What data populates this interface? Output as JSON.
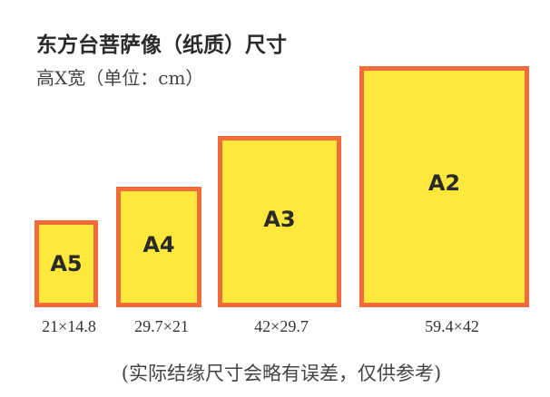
{
  "title": "东方台菩萨像（纸质）尺寸",
  "subtitle": "高Ⅹ宽（单位：cm）",
  "sizes": [
    {
      "label": "A5",
      "dimensions": "21×14.8"
    },
    {
      "label": "A4",
      "dimensions": "29.7×21"
    },
    {
      "label": "A3",
      "dimensions": "42×29.7"
    },
    {
      "label": "A2",
      "dimensions": "59.4×42"
    }
  ],
  "note": "(实际结缘尺寸会略有误差，仅供参考)",
  "colors": {
    "border": "#f26b3a",
    "fill": "#ffe83c"
  }
}
